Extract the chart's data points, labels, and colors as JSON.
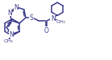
{
  "bg_color": "#ffffff",
  "line_color": "#3a3a8a",
  "text_color": "#3a3a8a",
  "line_width": 1.1,
  "font_size": 5.5
}
